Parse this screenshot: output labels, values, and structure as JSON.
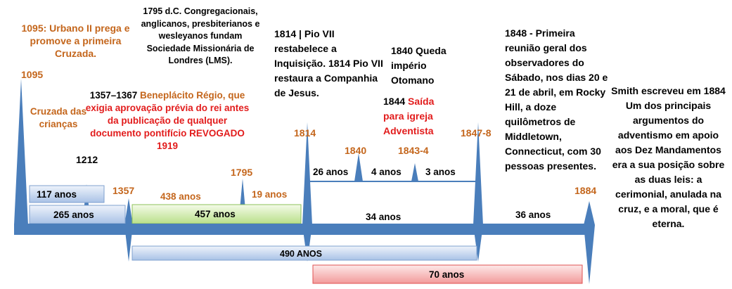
{
  "events": {
    "crusade": "1095: Urbano II prega e promove a primeira Cruzada.",
    "children_crusade": "Cruzada das crianças",
    "placet": {
      "years": "1357–1367",
      "title": "Beneplácito Régio, que",
      "text": "exigia aprovação prévia do rei antes da publicação de qualquer documento pontifício REVOGADO 1919"
    },
    "lms": "1795 d.C. Congregacionais, anglicanos, presbiterianos e wesleyanos fundam Sociedade Missionária de Londres (LMS).",
    "pius": "1814 | Pio VII restabelece a Inquisição. 1814 Pio VII restaura a Companhia de Jesus.",
    "ottoman": "1840 Queda império Otomano",
    "exit": {
      "year": "1844",
      "text": "Saída para igreja Adventista"
    },
    "sabbath": "1848 - Primeira reunião geral dos observadores do Sábado, nos dias 20 e 21 de abril, em Rocky Hill, a doze quilômetros de Middletown, Connecticut, com 30 pessoas presentes.",
    "smith": "Smith escreveu em 1884 Um dos principais argumentos do adventismo em apoio aos Dez Mandamentos era a sua posição sobre as duas leis: a cerimonial, anulada na cruz, e a moral, que é eterna."
  },
  "years": [
    "1095",
    "1212",
    "1357",
    "1795",
    "1814",
    "1840",
    "1843-4",
    "1847-8",
    "1884"
  ],
  "durations": [
    "117 anos",
    "265 anos",
    "457 anos",
    "438  anos",
    "19 anos",
    "490 ANOS",
    "70 anos",
    "26 anos",
    "4 anos",
    "3 anos",
    "34 anos",
    "36 anos"
  ]
}
